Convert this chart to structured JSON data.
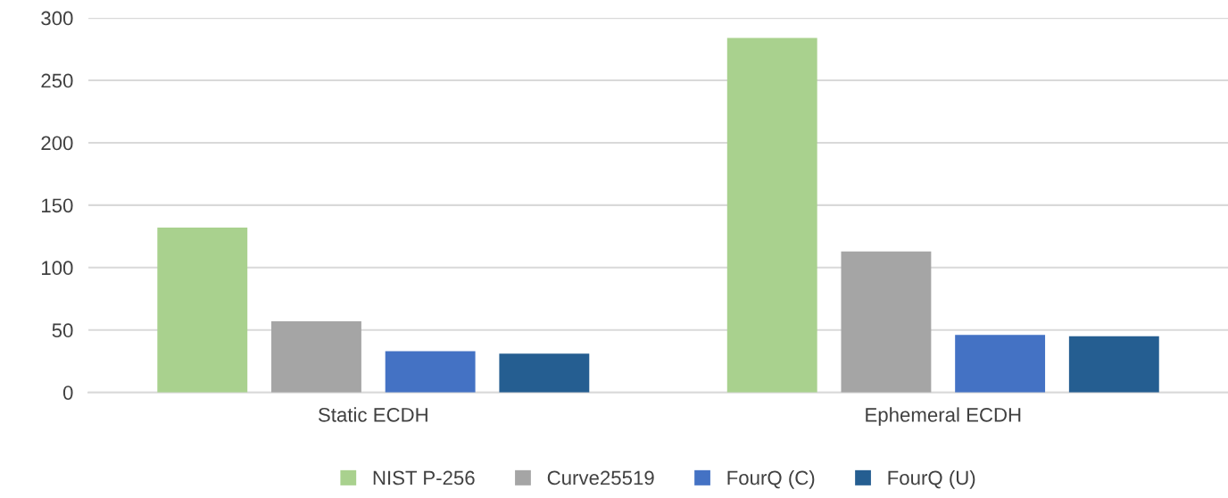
{
  "chart_data": {
    "type": "bar",
    "categories": [
      "Static ECDH",
      "Ephemeral ECDH"
    ],
    "series": [
      {
        "name": "NIST P-256",
        "color": "#a9d18e",
        "values": [
          132,
          284
        ]
      },
      {
        "name": "Curve25519",
        "color": "#a5a5a5",
        "values": [
          57,
          113
        ]
      },
      {
        "name": "FourQ (C)",
        "color": "#4472c4",
        "values": [
          33,
          46
        ]
      },
      {
        "name": "FourQ (U)",
        "color": "#255e91",
        "values": [
          31,
          45
        ]
      }
    ],
    "ylim": [
      0,
      300
    ],
    "yticks": [
      0,
      50,
      100,
      150,
      200,
      250,
      300
    ],
    "grid": "y",
    "legend": "bottom"
  }
}
